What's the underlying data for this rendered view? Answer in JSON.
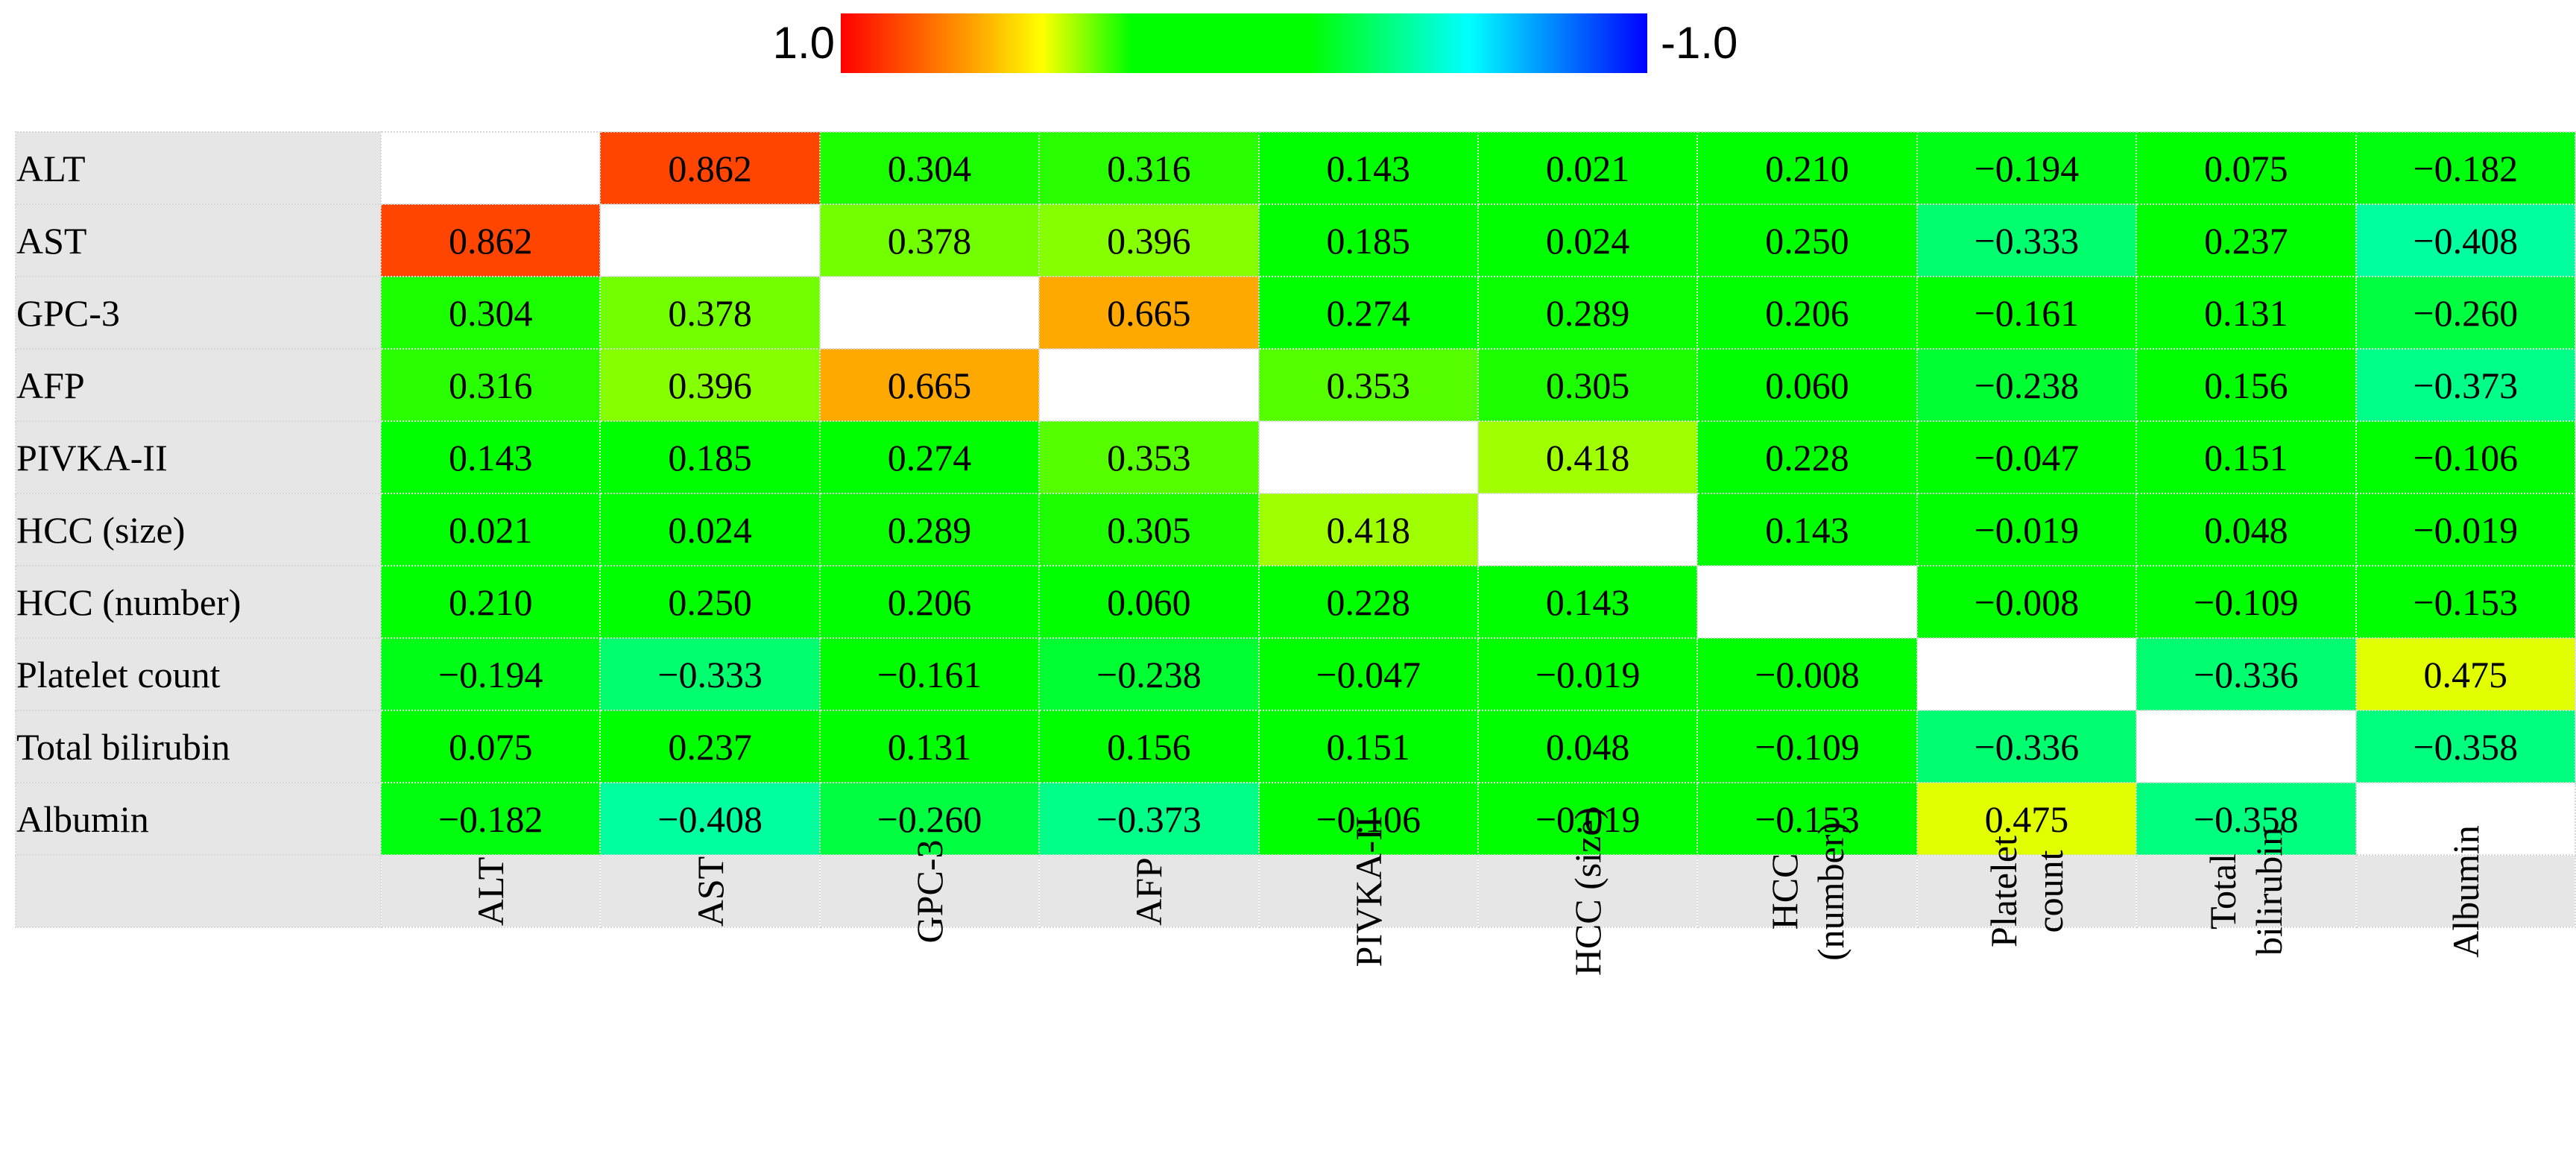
{
  "legend": {
    "max_label": "1.0",
    "min_label": "-1.0"
  },
  "chart_data": {
    "type": "heatmap",
    "color_scale": {
      "max": 1.0,
      "min": -1.0,
      "colors": [
        "#ff0000",
        "#ffa500",
        "#ffff00",
        "#00ff00",
        "#00ffff",
        "#0000ff"
      ]
    },
    "row_labels": [
      "ALT",
      "AST",
      "GPC-3",
      "AFP",
      "PIVKA-II",
      "HCC (size)",
      "HCC (number)",
      "Platelet count",
      "Total bilirubin",
      "Albumin"
    ],
    "col_labels": [
      "ALT",
      "AST",
      "GPC-3",
      "AFP",
      "PIVKA-II",
      "HCC (size)",
      "HCC\n(number)",
      "Platelet\ncount",
      "Total\nbilirubin",
      "Albumin"
    ],
    "values": [
      [
        null,
        0.862,
        0.304,
        0.316,
        0.143,
        0.021,
        0.21,
        -0.194,
        0.075,
        -0.182
      ],
      [
        0.862,
        null,
        0.378,
        0.396,
        0.185,
        0.024,
        0.25,
        -0.333,
        0.237,
        -0.408
      ],
      [
        0.304,
        0.378,
        null,
        0.665,
        0.274,
        0.289,
        0.206,
        -0.161,
        0.131,
        -0.26
      ],
      [
        0.316,
        0.396,
        0.665,
        null,
        0.353,
        0.305,
        0.06,
        -0.238,
        0.156,
        -0.373
      ],
      [
        0.143,
        0.185,
        0.274,
        0.353,
        null,
        0.418,
        0.228,
        -0.047,
        0.151,
        -0.106
      ],
      [
        0.021,
        0.024,
        0.289,
        0.305,
        0.418,
        null,
        0.143,
        -0.019,
        0.048,
        -0.019
      ],
      [
        0.21,
        0.25,
        0.206,
        0.06,
        0.228,
        0.143,
        null,
        -0.008,
        -0.109,
        -0.153
      ],
      [
        -0.194,
        -0.333,
        -0.161,
        -0.238,
        -0.047,
        -0.019,
        -0.008,
        null,
        -0.336,
        0.475
      ],
      [
        0.075,
        0.237,
        0.131,
        0.156,
        0.151,
        0.048,
        -0.109,
        -0.336,
        null,
        -0.358
      ],
      [
        -0.182,
        -0.408,
        -0.26,
        -0.373,
        -0.106,
        -0.019,
        -0.153,
        0.475,
        -0.358,
        null
      ]
    ],
    "cell_text": [
      [
        "",
        "0.862",
        "0.304",
        "0.316",
        "0.143",
        "0.021",
        "0.210",
        "−0.194",
        "0.075",
        "−0.182"
      ],
      [
        "0.862",
        "",
        "0.378",
        "0.396",
        "0.185",
        "0.024",
        "0.250",
        "−0.333",
        "0.237",
        "−0.408"
      ],
      [
        "0.304",
        "0.378",
        "",
        "0.665",
        "0.274",
        "0.289",
        "0.206",
        "−0.161",
        "0.131",
        "−0.260"
      ],
      [
        "0.316",
        "0.396",
        "0.665",
        "",
        "0.353",
        "0.305",
        "0.060",
        "−0.238",
        "0.156",
        "−0.373"
      ],
      [
        "0.143",
        "0.185",
        "0.274",
        "0.353",
        "",
        "0.418",
        "0.228",
        "−0.047",
        "0.151",
        "−0.106"
      ],
      [
        "0.021",
        "0.024",
        "0.289",
        "0.305",
        "0.418",
        "",
        "0.143",
        "−0.019",
        "0.048",
        "−0.019"
      ],
      [
        "0.210",
        "0.250",
        "0.206",
        "0.060",
        "0.228",
        "0.143",
        "",
        "−0.008",
        "−0.109",
        "−0.153"
      ],
      [
        "−0.194",
        "−0.333",
        "−0.161",
        "−0.238",
        "−0.047",
        "−0.019",
        "−0.008",
        "",
        "−0.336",
        "0.475"
      ],
      [
        "0.075",
        "0.237",
        "0.131",
        "0.156",
        "0.151",
        "0.048",
        "−0.109",
        "−0.336",
        "",
        "−0.358"
      ],
      [
        "−0.182",
        "−0.408",
        "−0.260",
        "−0.373",
        "−0.106",
        "−0.019",
        "−0.153",
        "0.475",
        "−0.358",
        ""
      ]
    ]
  }
}
